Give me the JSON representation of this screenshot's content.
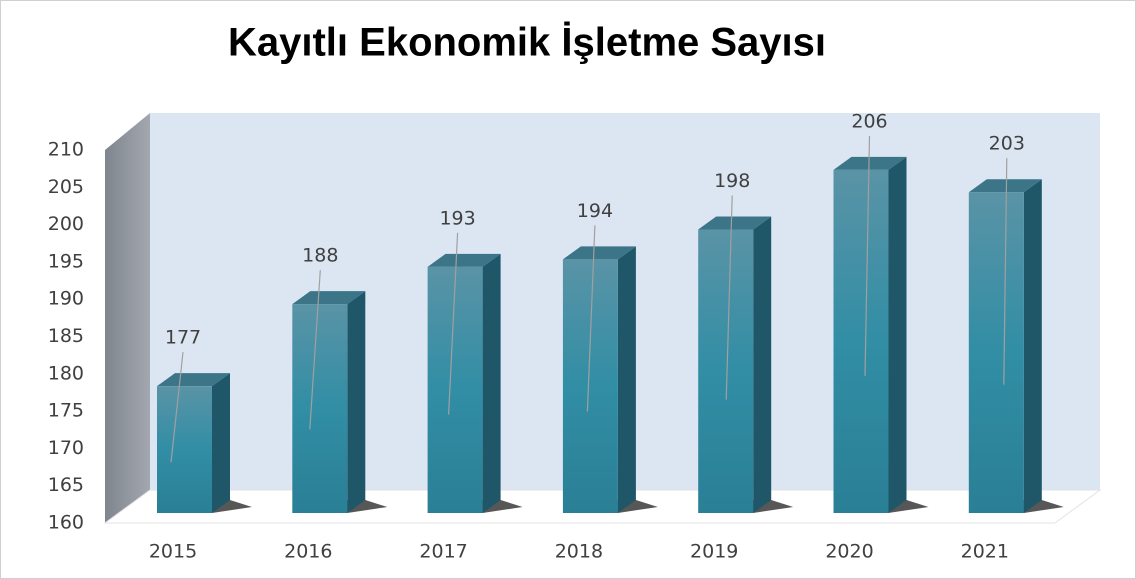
{
  "chart_data": {
    "type": "bar3d",
    "title": "Kayıtlı Ekonomik İşletme Sayısı",
    "categories": [
      "2015",
      "2016",
      "2017",
      "2018",
      "2019",
      "2020",
      "2021"
    ],
    "values": [
      177,
      188,
      193,
      194,
      198,
      206,
      203
    ],
    "color": "#2f8aa1",
    "ylim": [
      160,
      210
    ],
    "yticks": [
      160,
      165,
      170,
      175,
      180,
      185,
      190,
      195,
      200,
      205,
      210
    ],
    "grid": false
  }
}
